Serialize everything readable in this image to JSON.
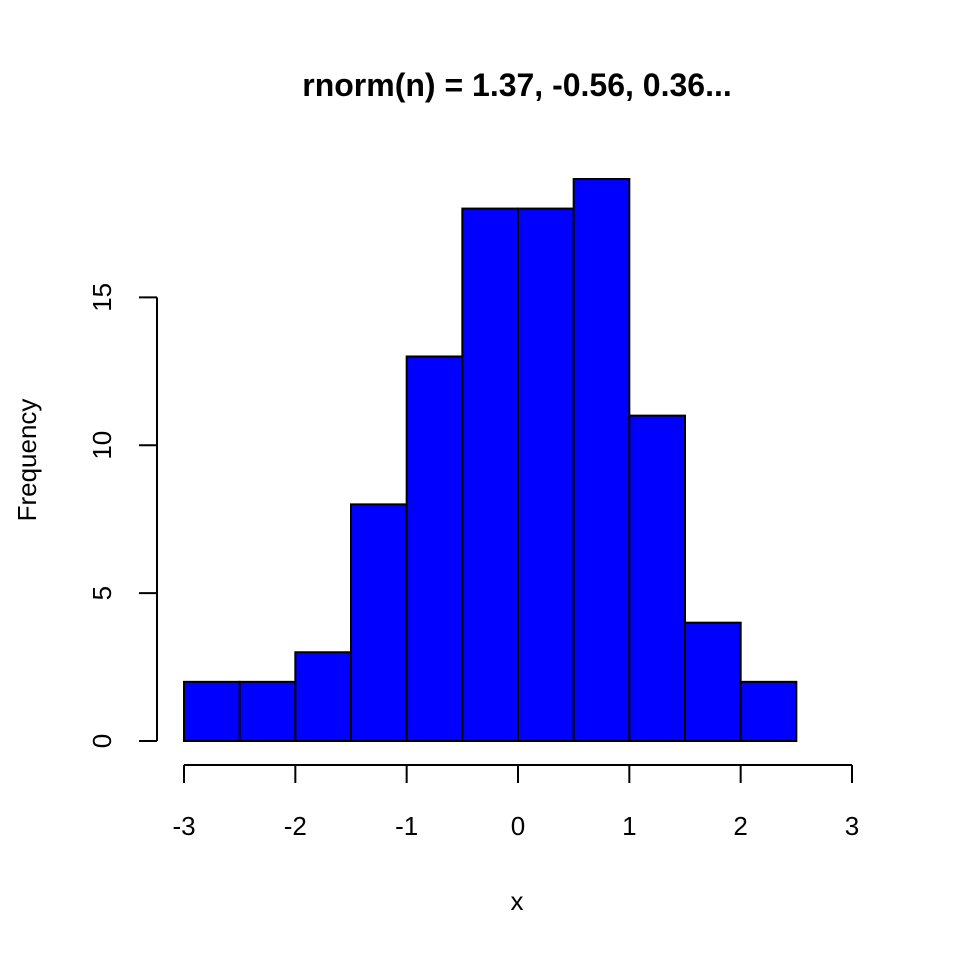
{
  "chart_data": {
    "type": "bar",
    "subtype": "histogram",
    "title": "rnorm(n) = 1.37, -0.56, 0.36...",
    "xlabel": "x",
    "ylabel": "Frequency",
    "bin_edges": [
      -3,
      -2.5,
      -2,
      -1.5,
      -1,
      -0.5,
      0,
      0.5,
      1,
      1.5,
      2,
      2.5
    ],
    "values": [
      2,
      2,
      3,
      8,
      13,
      18,
      18,
      19,
      11,
      4,
      2
    ],
    "xlim": [
      -3,
      3
    ],
    "ylim": [
      0,
      19
    ],
    "x_ticks": [
      -3,
      -2,
      -1,
      0,
      1,
      2,
      3
    ],
    "y_ticks": [
      0,
      5,
      10,
      15
    ],
    "grid": false,
    "legend": "none",
    "bar_color": "#0000ff",
    "bar_border_color": "#000000"
  }
}
